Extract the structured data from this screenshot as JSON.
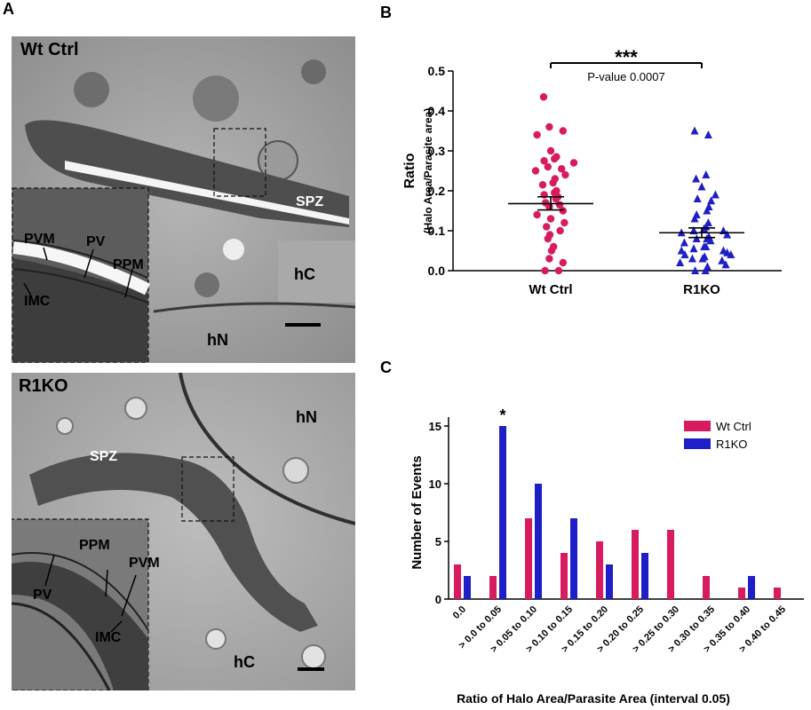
{
  "panels": {
    "a": "A",
    "b": "B",
    "c": "C"
  },
  "micrographs": [
    {
      "condition": "Wt Ctrl",
      "labels": {
        "spz": "SPZ",
        "hc": "hC",
        "hn": "hN",
        "pvm": "PVM",
        "pv": "PV",
        "ppm": "PPM",
        "imc": "IMC"
      }
    },
    {
      "condition": "R1KO",
      "labels": {
        "spz": "SPZ",
        "hc": "hC",
        "hn": "hN",
        "pvm": "PVM",
        "pv": "PV",
        "ppm": "PPM",
        "imc": "IMC"
      }
    }
  ],
  "colors": {
    "wt": "#d81b60",
    "r1ko": "#1f1fc8",
    "text": "#000000"
  },
  "chart_data": [
    {
      "type": "scatter",
      "ylabel": "Ratio",
      "ylabel2": "(Halo Area/Parasite area)",
      "categories": [
        "Wt Ctrl",
        "R1KO"
      ],
      "ylim": [
        0,
        0.5
      ],
      "yticks": [
        "0.0",
        "0.1",
        "0.2",
        "0.3",
        "0.4",
        "0.5"
      ],
      "significance": "***",
      "pvalue_text": "P-value 0.0007",
      "series": [
        {
          "name": "Wt Ctrl",
          "marker": "circle",
          "mean": 0.168,
          "sem_low": 0.152,
          "sem_high": 0.185,
          "values": [
            0.435,
            0.36,
            0.35,
            0.34,
            0.3,
            0.285,
            0.28,
            0.275,
            0.27,
            0.26,
            0.255,
            0.25,
            0.24,
            0.23,
            0.22,
            0.215,
            0.2,
            0.195,
            0.19,
            0.185,
            0.18,
            0.17,
            0.165,
            0.16,
            0.15,
            0.14,
            0.13,
            0.12,
            0.11,
            0.1,
            0.09,
            0.08,
            0.06,
            0.05,
            0.03,
            0.02,
            0.0,
            0.0
          ]
        },
        {
          "name": "R1KO",
          "marker": "triangle",
          "mean": 0.095,
          "sem_low": 0.083,
          "sem_high": 0.107,
          "values": [
            0.35,
            0.34,
            0.24,
            0.23,
            0.21,
            0.19,
            0.18,
            0.175,
            0.16,
            0.15,
            0.14,
            0.13,
            0.12,
            0.11,
            0.105,
            0.1,
            0.1,
            0.095,
            0.09,
            0.085,
            0.08,
            0.08,
            0.075,
            0.07,
            0.06,
            0.06,
            0.055,
            0.05,
            0.05,
            0.045,
            0.04,
            0.04,
            0.035,
            0.03,
            0.03,
            0.025,
            0.02,
            0.015,
            0.01,
            0.0,
            0.0
          ]
        }
      ]
    },
    {
      "type": "bar",
      "ylabel": "Number of Events",
      "xlabel": "Ratio of Halo Area/Parasite Area (interval 0.05)",
      "ylim": [
        0,
        15
      ],
      "yticks": [
        "0",
        "5",
        "10",
        "15"
      ],
      "categories": [
        "0.0",
        "> 0.0 to 0.05",
        "> 0.05 to 0.10",
        "> 0.10 to 0.15",
        "> 0.15 to 0.20",
        "> 0.20 to 0.25",
        "> 0.25 to 0.30",
        "> 0.30 to 0.35",
        "> 0.35 to 0.40",
        "> 0.40 to 0.45"
      ],
      "annotation": "*",
      "legend_position": "top-right",
      "series": [
        {
          "name": "Wt Ctrl",
          "values": [
            3,
            2,
            7,
            4,
            5,
            6,
            6,
            2,
            1,
            1
          ]
        },
        {
          "name": "R1KO",
          "values": [
            2,
            15,
            10,
            7,
            3,
            4,
            0,
            0,
            2,
            0
          ]
        }
      ]
    }
  ]
}
